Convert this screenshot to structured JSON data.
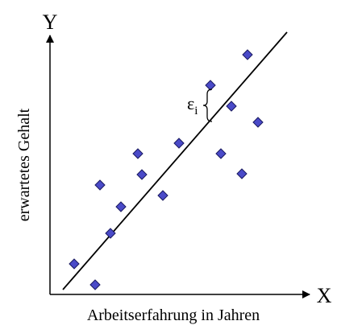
{
  "axes": {
    "y_letter": "Y",
    "x_letter": "X",
    "y_label": "erwartetes Gehalt",
    "x_label": "Arbeitserfahrung in Jahren"
  },
  "annotation": {
    "symbol": "ε",
    "subscript": "i"
  }
}
